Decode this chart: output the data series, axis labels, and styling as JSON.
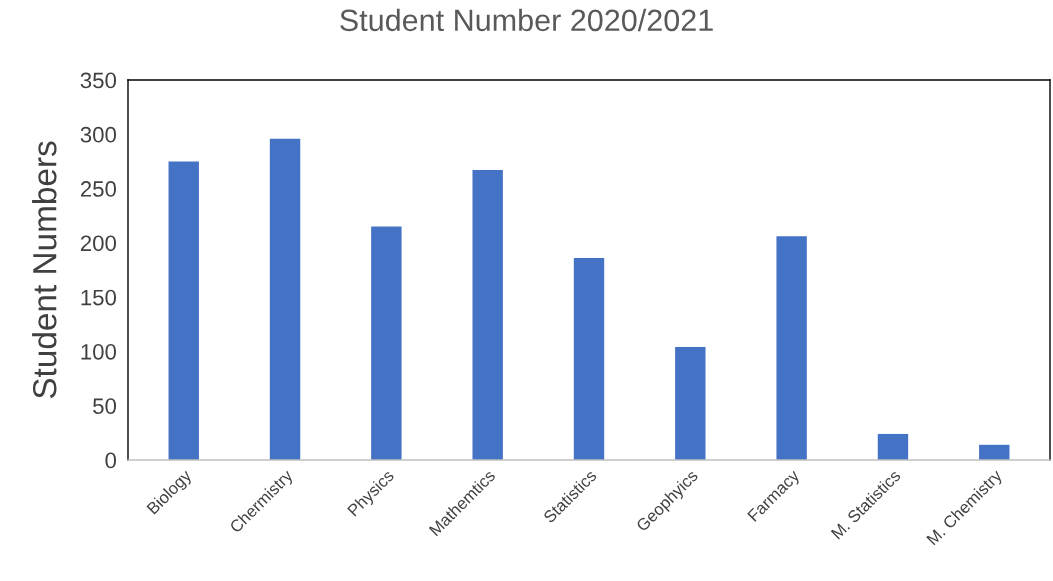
{
  "chart_data": {
    "type": "bar",
    "title": "Student Number 2020/2021",
    "ylabel": "Student Numbers",
    "categories": [
      "Biology",
      "Chermistry",
      "Physics",
      "Mathemtics",
      "Statistics",
      "Geophyics",
      "Farmacy",
      "M. Statistics",
      "M. Chemistry"
    ],
    "values": [
      275,
      296,
      215,
      267,
      186,
      104,
      206,
      24,
      14
    ],
    "color": "#4472c4",
    "ylim": [
      0,
      350
    ],
    "yticks": [
      0,
      50,
      100,
      150,
      200,
      250,
      300,
      350
    ],
    "grid": false,
    "legend": false
  }
}
